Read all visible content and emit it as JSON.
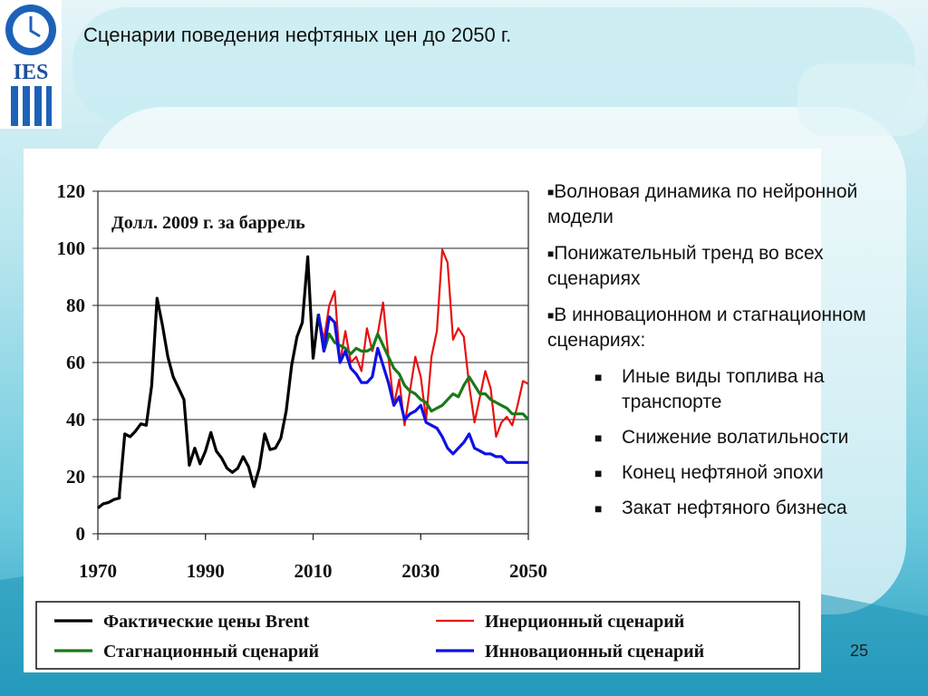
{
  "title": "Сценарии поведения нефтяных цен до 2050 г.",
  "logo": {
    "text": "IES"
  },
  "page_number": "25",
  "bullets": [
    {
      "text": "Волновая динамика по нейронной модели",
      "level": 1
    },
    {
      "text": "Понижательный тренд во всех сценариях",
      "level": 1
    },
    {
      "text": "В инновационном и стагнационном сценариях:",
      "level": 1
    },
    {
      "text": "Иные виды топлива на транспорте",
      "level": 2
    },
    {
      "text": "Снижение волатильности",
      "level": 2
    },
    {
      "text": "Конец нефтяной эпохи",
      "level": 2
    },
    {
      "text": "Закат нефтяного бизнеса",
      "level": 2
    }
  ],
  "chart_data": {
    "type": "line",
    "unit_label": "Долл. 2009 г. за баррель",
    "xlim": [
      1970,
      2050
    ],
    "ylim": [
      0,
      120
    ],
    "x_ticks": [
      "1970",
      "1990",
      "2010",
      "2030",
      "2050"
    ],
    "y_ticks": [
      "0",
      "20",
      "40",
      "60",
      "80",
      "100",
      "120"
    ],
    "grid": "horizontal",
    "legend_position": "bottom",
    "series": [
      {
        "name": "Фактические цены Brent",
        "color": "#000000",
        "width": 3.2,
        "points": [
          [
            1970,
            9
          ],
          [
            1971,
            10.5
          ],
          [
            1972,
            11
          ],
          [
            1973,
            12
          ],
          [
            1974,
            12.5
          ],
          [
            1974,
            14
          ],
          [
            1975,
            35
          ],
          [
            1976,
            34
          ],
          [
            1977,
            36
          ],
          [
            1978,
            38.5
          ],
          [
            1979,
            38
          ],
          [
            1980,
            52
          ],
          [
            1981,
            82.5
          ],
          [
            1982,
            73
          ],
          [
            1983,
            62
          ],
          [
            1984,
            55
          ],
          [
            1985,
            51
          ],
          [
            1986,
            47
          ],
          [
            1987,
            24
          ],
          [
            1988,
            30
          ],
          [
            1989,
            24.5
          ],
          [
            1990,
            29
          ],
          [
            1991,
            35.5
          ],
          [
            1992,
            29
          ],
          [
            1993,
            26.5
          ],
          [
            1994,
            23
          ],
          [
            1995,
            21.5
          ],
          [
            1996,
            23
          ],
          [
            1997,
            27
          ],
          [
            1998,
            23.5
          ],
          [
            1999,
            16.5
          ],
          [
            2000,
            23
          ],
          [
            2001,
            35
          ],
          [
            2002,
            29.5
          ],
          [
            2003,
            30
          ],
          [
            2004,
            33.5
          ],
          [
            2005,
            43
          ],
          [
            2006,
            59
          ],
          [
            2007,
            69
          ],
          [
            2008,
            74
          ],
          [
            2009,
            97
          ],
          [
            2010,
            61.5
          ],
          [
            2011,
            77
          ]
        ]
      },
      {
        "name": "Инерционный сценарий",
        "color": "#e8100f",
        "width": 2.2,
        "points": [
          [
            2011,
            77
          ],
          [
            2012,
            68
          ],
          [
            2013,
            80
          ],
          [
            2014,
            85
          ],
          [
            2015,
            60
          ],
          [
            2016,
            71
          ],
          [
            2017,
            60
          ],
          [
            2018,
            62
          ],
          [
            2019,
            57
          ],
          [
            2020,
            72
          ],
          [
            2021,
            64
          ],
          [
            2022,
            70
          ],
          [
            2023,
            81
          ],
          [
            2024,
            62
          ],
          [
            2025,
            45
          ],
          [
            2026,
            54
          ],
          [
            2027,
            38
          ],
          [
            2028,
            50
          ],
          [
            2029,
            62
          ],
          [
            2030,
            55
          ],
          [
            2031,
            40
          ],
          [
            2032,
            62
          ],
          [
            2033,
            71
          ],
          [
            2034,
            99.5
          ],
          [
            2035,
            95
          ],
          [
            2036,
            68
          ],
          [
            2037,
            72
          ],
          [
            2038,
            69
          ],
          [
            2039,
            52
          ],
          [
            2040,
            39
          ],
          [
            2041,
            48
          ],
          [
            2042,
            57
          ],
          [
            2043,
            51
          ],
          [
            2044,
            34
          ],
          [
            2045,
            39
          ],
          [
            2046,
            41
          ],
          [
            2047,
            38
          ],
          [
            2048,
            45
          ],
          [
            2049,
            53.5
          ],
          [
            2050,
            52.5
          ]
        ]
      },
      {
        "name": "Стагнационный сценарий",
        "color": "#1a7a1a",
        "width": 3.2,
        "points": [
          [
            2011,
            77
          ],
          [
            2012,
            64
          ],
          [
            2013,
            70
          ],
          [
            2014,
            67
          ],
          [
            2015,
            66
          ],
          [
            2016,
            65
          ],
          [
            2017,
            63
          ],
          [
            2018,
            65
          ],
          [
            2019,
            64
          ],
          [
            2020,
            64
          ],
          [
            2021,
            65
          ],
          [
            2022,
            70
          ],
          [
            2023,
            66
          ],
          [
            2024,
            62
          ],
          [
            2025,
            58
          ],
          [
            2026,
            56
          ],
          [
            2027,
            52
          ],
          [
            2028,
            50
          ],
          [
            2029,
            49
          ],
          [
            2030,
            47
          ],
          [
            2031,
            46
          ],
          [
            2032,
            43
          ],
          [
            2033,
            44
          ],
          [
            2034,
            45
          ],
          [
            2035,
            47
          ],
          [
            2036,
            49
          ],
          [
            2037,
            48
          ],
          [
            2038,
            52
          ],
          [
            2039,
            55
          ],
          [
            2040,
            52
          ],
          [
            2041,
            49
          ],
          [
            2042,
            49
          ],
          [
            2043,
            47
          ],
          [
            2044,
            46
          ],
          [
            2045,
            45
          ],
          [
            2046,
            44
          ],
          [
            2047,
            42
          ],
          [
            2048,
            42
          ],
          [
            2049,
            42
          ],
          [
            2050,
            40
          ]
        ]
      },
      {
        "name": "Инновационный сценарий",
        "color": "#1010e6",
        "width": 3.2,
        "points": [
          [
            2011,
            77
          ],
          [
            2012,
            64
          ],
          [
            2013,
            76
          ],
          [
            2014,
            74
          ],
          [
            2015,
            60
          ],
          [
            2016,
            64
          ],
          [
            2017,
            58
          ],
          [
            2018,
            56
          ],
          [
            2019,
            53
          ],
          [
            2020,
            53
          ],
          [
            2021,
            55
          ],
          [
            2022,
            65
          ],
          [
            2023,
            59
          ],
          [
            2024,
            53
          ],
          [
            2025,
            45
          ],
          [
            2026,
            48
          ],
          [
            2027,
            40
          ],
          [
            2028,
            42
          ],
          [
            2029,
            43
          ],
          [
            2030,
            45
          ],
          [
            2031,
            39
          ],
          [
            2032,
            38
          ],
          [
            2033,
            37
          ],
          [
            2034,
            34
          ],
          [
            2035,
            30
          ],
          [
            2036,
            28
          ],
          [
            2037,
            30
          ],
          [
            2038,
            32
          ],
          [
            2039,
            35
          ],
          [
            2040,
            30
          ],
          [
            2041,
            29
          ],
          [
            2042,
            28
          ],
          [
            2043,
            28
          ],
          [
            2044,
            27
          ],
          [
            2045,
            27
          ],
          [
            2046,
            25
          ],
          [
            2047,
            25
          ],
          [
            2048,
            25
          ],
          [
            2049,
            25
          ],
          [
            2050,
            25
          ]
        ]
      }
    ]
  },
  "colors": {
    "background_top": "#dff1f5",
    "background_mid": "#7fd3e2",
    "background_deep": "#2aa8c8"
  }
}
